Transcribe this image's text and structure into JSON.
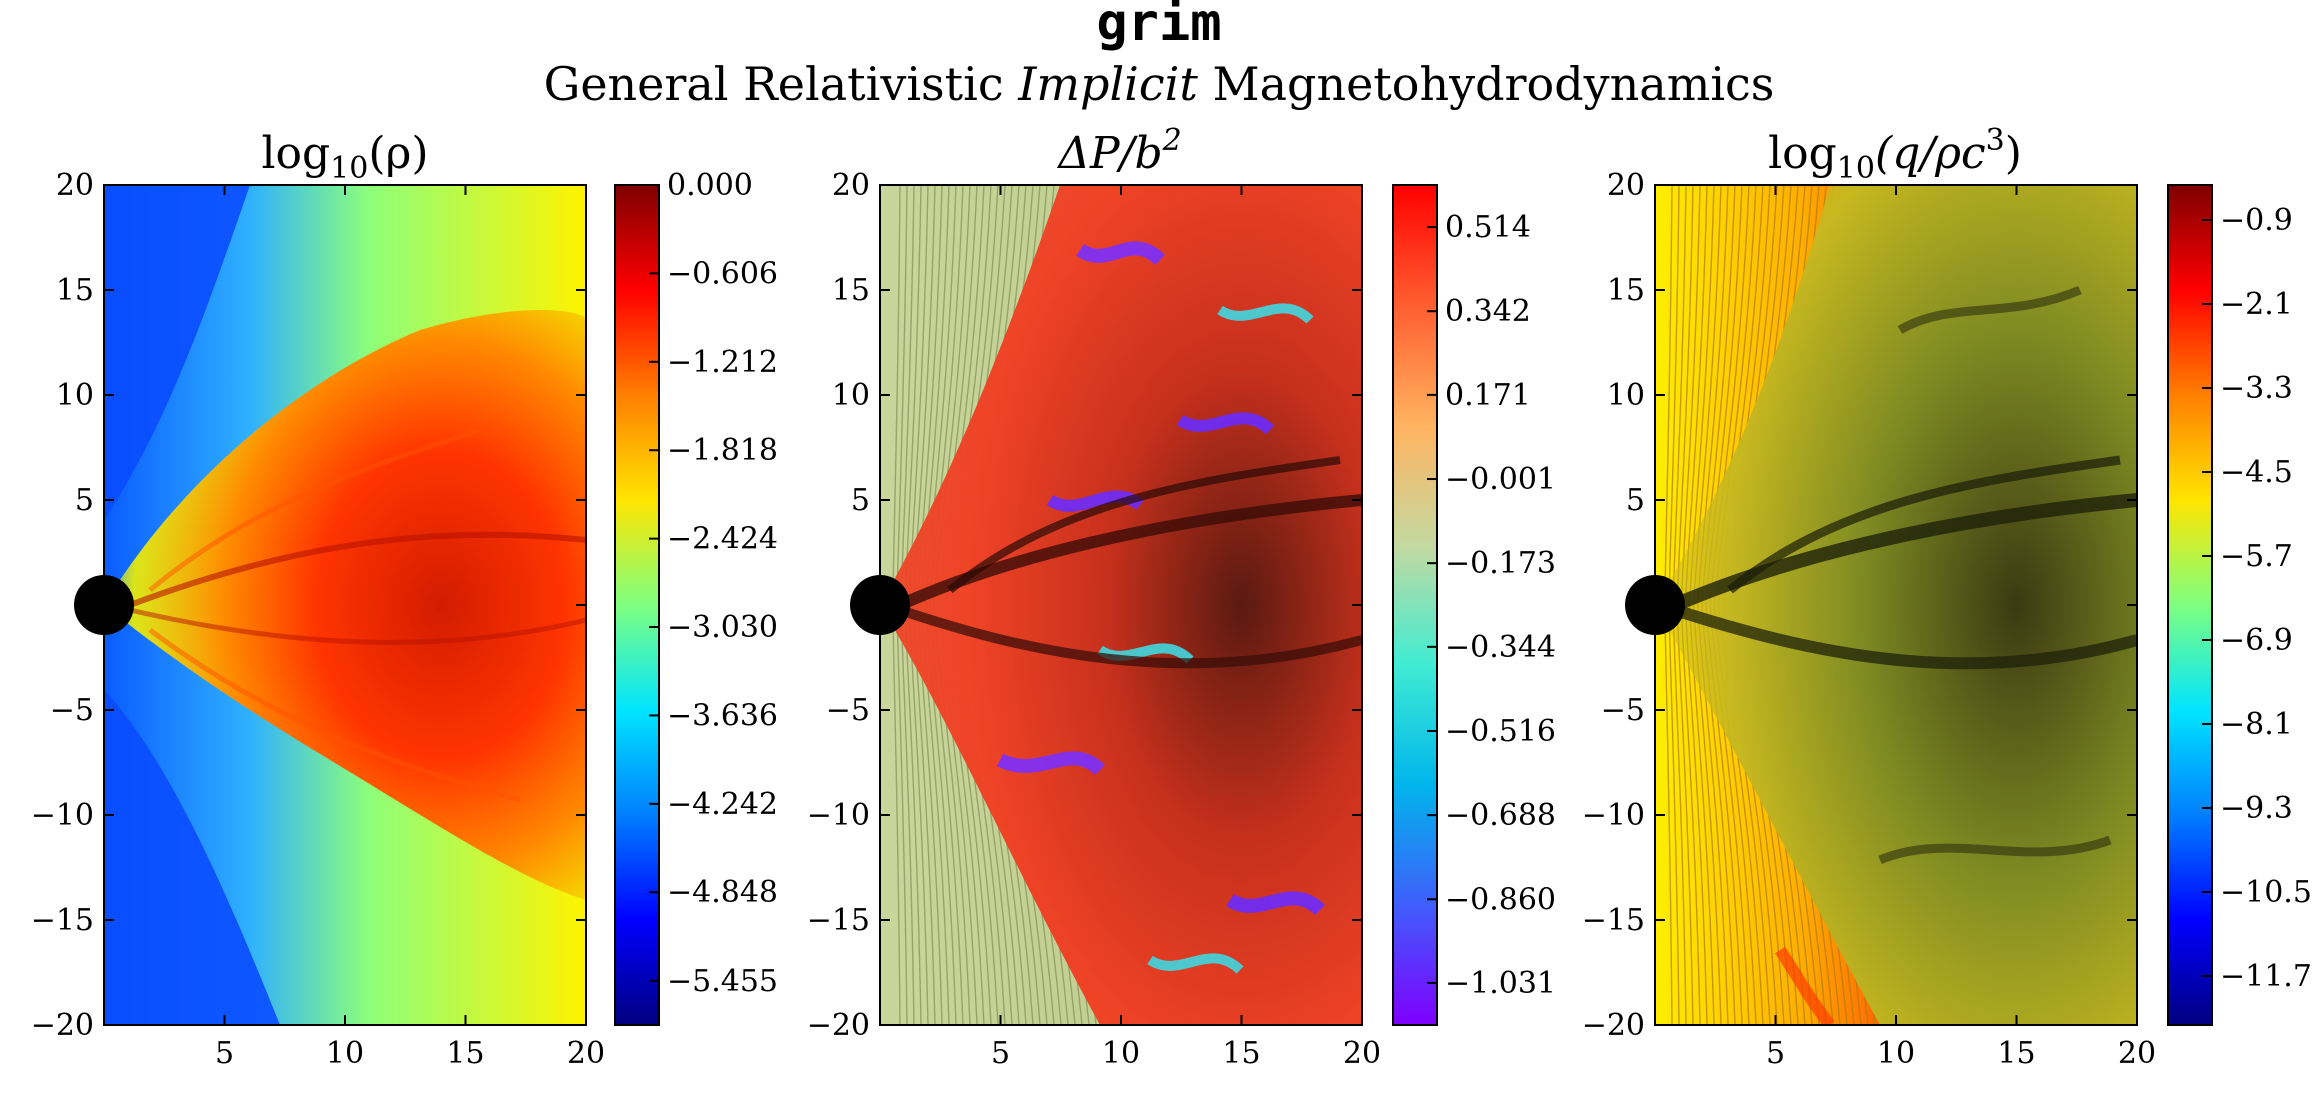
{
  "header": {
    "title": "grim",
    "subtitle_pre": "General Relativistic ",
    "subtitle_em": "Implicit",
    "subtitle_post": " Magnetohydrodynamics"
  },
  "chart_data": [
    {
      "type": "heatmap",
      "title_main": "log",
      "title_sub": "10",
      "title_rest": "(ρ)",
      "xlim": [
        0,
        20
      ],
      "ylim": [
        -20,
        20
      ],
      "xticks": [
        "5",
        "10",
        "15",
        "20"
      ],
      "yticks": [
        "20",
        "15",
        "10",
        "5",
        "0",
        "−5",
        "−10",
        "−15",
        "−20"
      ],
      "colorbar_range": [
        -5.758,
        0.0
      ],
      "colorbar_ticks": [
        "0.000",
        "−0.606",
        "−1.212",
        "−1.818",
        "−2.424",
        "−3.030",
        "−3.636",
        "−4.242",
        "−4.848",
        "−5.455"
      ],
      "colormap": "jet",
      "colorbar_colors": [
        "#00007f",
        "#0000ff",
        "#007fff",
        "#00e5ff",
        "#7fff7f",
        "#ffe500",
        "#ff7f00",
        "#ff0000",
        "#7f0000"
      ]
    },
    {
      "type": "heatmap",
      "title_main": "ΔP/b",
      "title_sub": "",
      "title_sup": "2",
      "xlim": [
        0,
        20
      ],
      "ylim": [
        -20,
        20
      ],
      "xticks": [
        "5",
        "10",
        "15",
        "20"
      ],
      "yticks": [
        "20",
        "15",
        "10",
        "5",
        "0",
        "−5",
        "−10",
        "−15",
        "−20"
      ],
      "colorbar_range": [
        -1.117,
        0.6
      ],
      "colorbar_ticks": [
        "0.514",
        "0.342",
        "0.171",
        "−0.001",
        "−0.173",
        "−0.344",
        "−0.516",
        "−0.688",
        "−0.860",
        "−1.031"
      ],
      "colormap": "rainbow",
      "colorbar_colors": [
        "#7f00ff",
        "#3f5efb",
        "#00b5eb",
        "#40ecd3",
        "#c4d9a0",
        "#ffb360",
        "#ff5e30",
        "#ff0000"
      ]
    },
    {
      "type": "heatmap",
      "title_main": "log",
      "title_sub": "10",
      "title_rest": "(q/ρc",
      "title_sup": "3",
      "title_close": ")",
      "xlim": [
        0,
        20
      ],
      "ylim": [
        -20,
        20
      ],
      "xticks": [
        "5",
        "10",
        "15",
        "20"
      ],
      "yticks": [
        "20",
        "15",
        "10",
        "5",
        "0",
        "−5",
        "−10",
        "−15",
        "−20"
      ],
      "colorbar_range": [
        -12.4,
        -0.4
      ],
      "colorbar_ticks": [
        "−0.9",
        "−2.1",
        "−3.3",
        "−4.5",
        "−5.7",
        "−6.9",
        "−8.1",
        "−9.3",
        "−10.5",
        "−11.7"
      ],
      "colormap": "jet",
      "colorbar_colors": [
        "#00007f",
        "#0000ff",
        "#007fff",
        "#00e5ff",
        "#7fff7f",
        "#ffe500",
        "#ff7f00",
        "#ff0000",
        "#7f0000"
      ]
    }
  ]
}
